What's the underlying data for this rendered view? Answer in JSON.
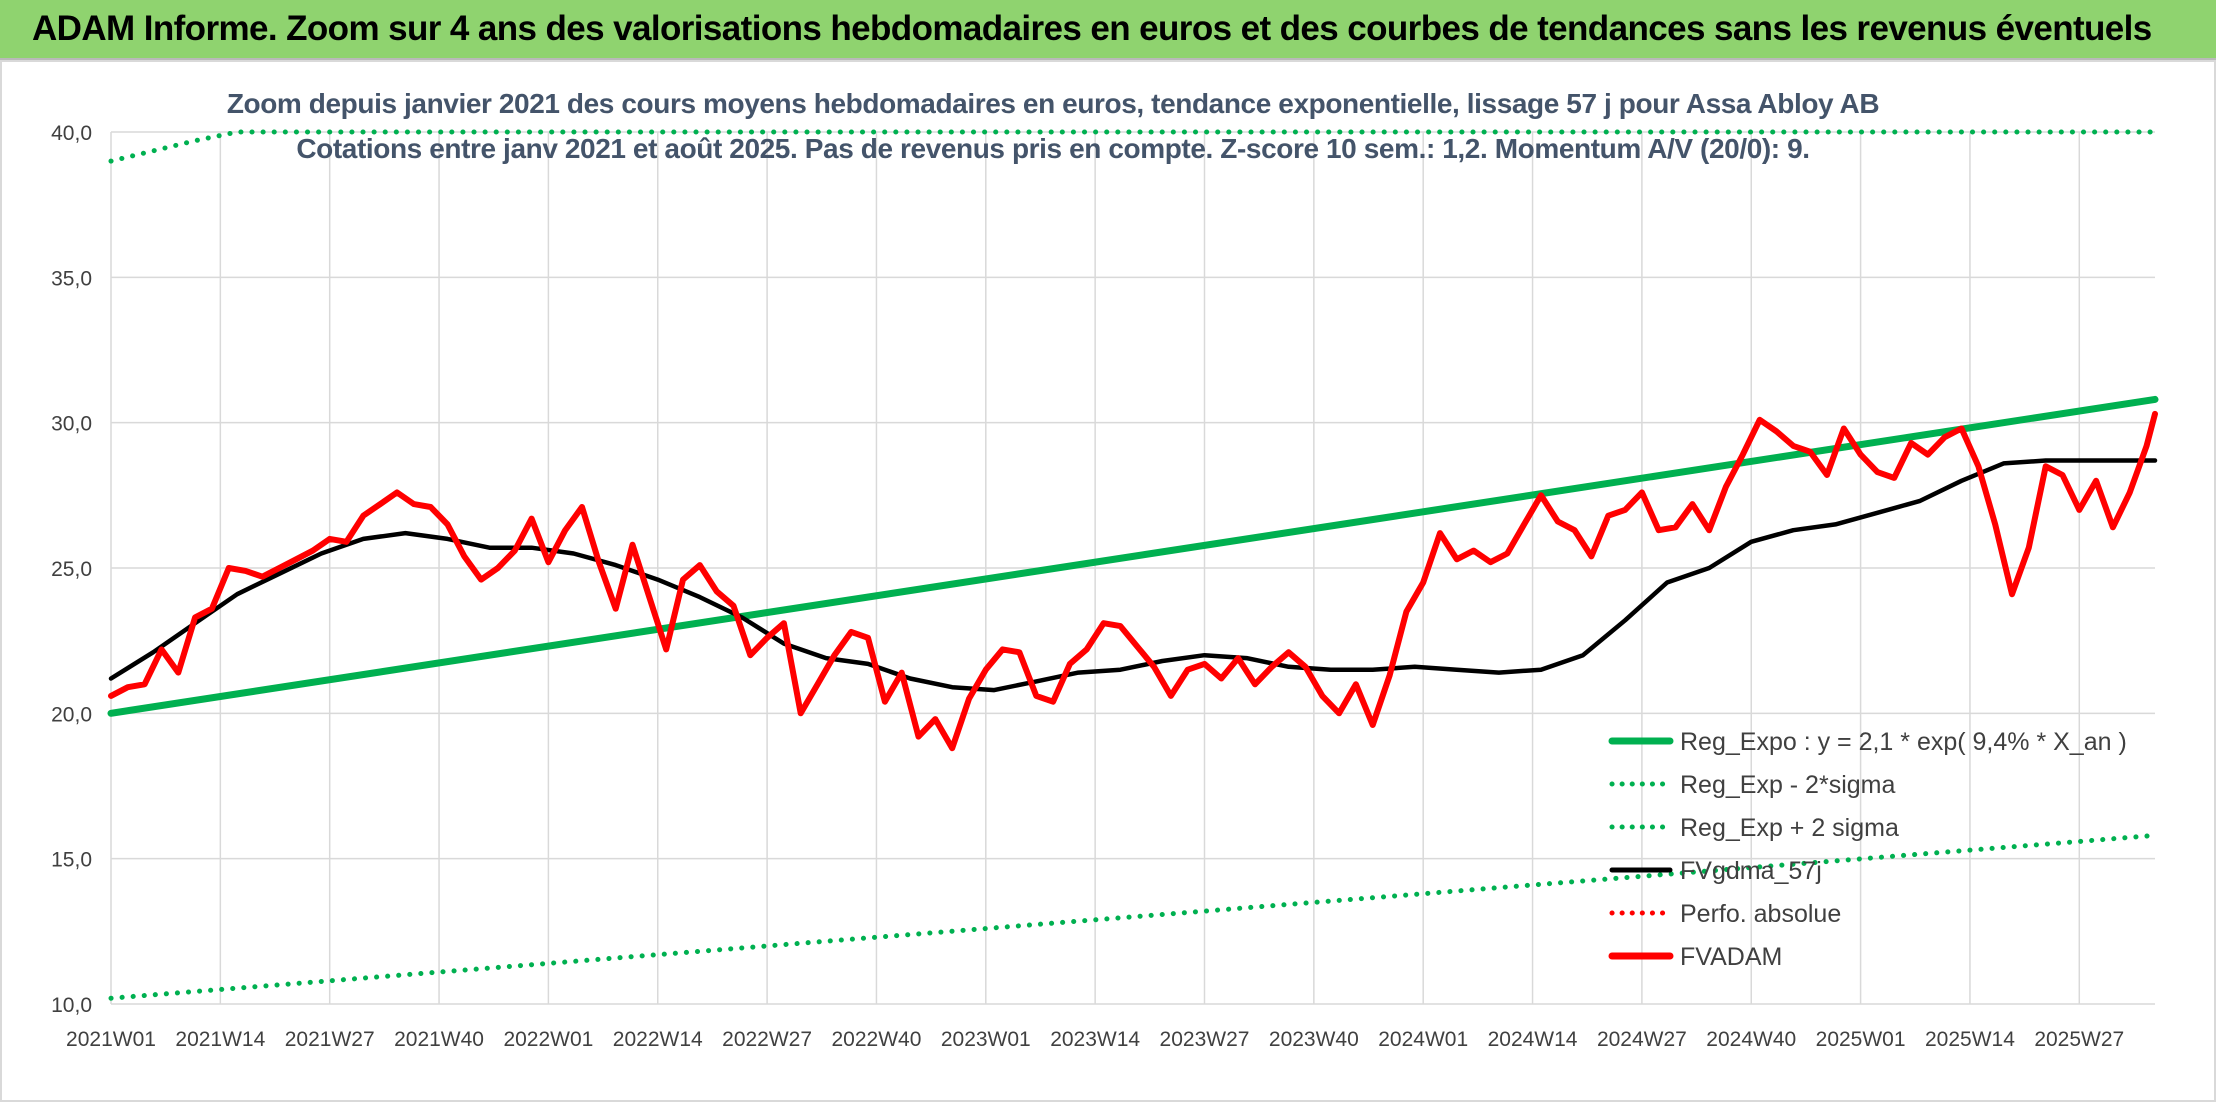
{
  "banner": {
    "title": "ADAM Informe. Zoom sur 4 ans des valorisations hebdomadaires en euros et des courbes de tendances sans les revenus éventuels"
  },
  "chart_data": {
    "type": "line",
    "title": "Zoom depuis janvier 2021 des cours moyens hebdomadaires en euros, tendance exponentielle, lissage 57 j pour Assa Abloy AB",
    "subtitle": "Cotations entre janv 2021 et août 2025. Pas de revenus pris en compte. Z-score 10 sem.: 1,2. Momentum A/V (20/0): 9.",
    "ylim": [
      10,
      40
    ],
    "yticks": [
      "10,0",
      "15,0",
      "20,0",
      "25,0",
      "30,0",
      "35,0",
      "40,0"
    ],
    "x_tick_labels": [
      "2021W01",
      "2021W14",
      "2021W27",
      "2021W40",
      "2022W01",
      "2022W14",
      "2022W27",
      "2022W40",
      "2023W01",
      "2023W14",
      "2023W27",
      "2023W40",
      "2024W01",
      "2024W14",
      "2024W27",
      "2024W40",
      "2025W01",
      "2025W14",
      "2025W27"
    ],
    "n_weeks": 244,
    "legend_position": "bottom-right",
    "grid": true,
    "series": [
      {
        "name": "Reg_Expo : y = 2,1 * exp( 9,4% *  X_an )",
        "color": "#00b050",
        "style": "solid",
        "x": [
          0,
          243
        ],
        "y": [
          20.0,
          30.8
        ]
      },
      {
        "name": "Reg_Exp - 2*sigma",
        "color": "#00b050",
        "style": "dotted",
        "x": [
          0,
          243
        ],
        "y": [
          10.2,
          15.8
        ]
      },
      {
        "name": "Reg_Exp + 2 sigma",
        "color": "#00b050",
        "style": "dotted",
        "x": [
          0,
          10,
          15,
          30,
          35,
          40,
          243
        ],
        "y": [
          39.0,
          39.7,
          40.0,
          40.0,
          40.0,
          40.0,
          40.0
        ]
      },
      {
        "name": "FVgdma_57j",
        "color": "#000000",
        "style": "solid",
        "x": [
          0,
          5,
          10,
          15,
          20,
          25,
          30,
          35,
          40,
          45,
          50,
          55,
          60,
          65,
          70,
          75,
          80,
          85,
          90,
          95,
          100,
          105,
          110,
          115,
          120,
          125,
          130,
          135,
          140,
          145,
          150,
          155,
          160,
          165,
          170,
          175,
          180,
          185,
          190,
          195,
          200,
          205,
          210,
          215,
          220,
          225,
          230,
          235,
          240,
          243
        ],
        "y": [
          21.2,
          22.1,
          23.1,
          24.1,
          24.8,
          25.5,
          26.0,
          26.2,
          26.0,
          25.7,
          25.7,
          25.5,
          25.1,
          24.6,
          24.0,
          23.3,
          22.4,
          21.9,
          21.7,
          21.2,
          20.9,
          20.8,
          21.1,
          21.4,
          21.5,
          21.8,
          22.0,
          21.9,
          21.6,
          21.5,
          21.5,
          21.6,
          21.5,
          21.4,
          21.5,
          22.0,
          23.2,
          24.5,
          25.0,
          25.9,
          26.3,
          26.5,
          26.9,
          27.3,
          28.0,
          28.6,
          28.7,
          28.7,
          28.7,
          28.7
        ]
      },
      {
        "name": "Perfo. absolue",
        "color": "#ff0000",
        "style": "dotted",
        "x": [],
        "y": []
      },
      {
        "name": "FVADAM",
        "color": "#ff0000",
        "style": "solid",
        "x": [
          0,
          2,
          4,
          6,
          8,
          10,
          12,
          14,
          16,
          18,
          20,
          22,
          24,
          26,
          28,
          30,
          32,
          34,
          36,
          38,
          40,
          42,
          44,
          46,
          48,
          50,
          52,
          54,
          56,
          58,
          60,
          62,
          64,
          66,
          68,
          70,
          72,
          74,
          76,
          78,
          80,
          82,
          84,
          86,
          88,
          90,
          92,
          94,
          96,
          98,
          100,
          102,
          104,
          106,
          108,
          110,
          112,
          114,
          116,
          118,
          120,
          122,
          124,
          126,
          128,
          130,
          132,
          134,
          136,
          138,
          140,
          142,
          144,
          146,
          148,
          150,
          152,
          154,
          156,
          158,
          160,
          162,
          164,
          166,
          168,
          170,
          172,
          174,
          176,
          178,
          180,
          182,
          184,
          186,
          188,
          190,
          192,
          194,
          196,
          198,
          200,
          202,
          204,
          206,
          208,
          210,
          212,
          214,
          216,
          218,
          220,
          222,
          224,
          226,
          228,
          230,
          232,
          234,
          236,
          238,
          240,
          242,
          243
        ],
        "y": [
          20.6,
          20.9,
          21.0,
          22.2,
          21.4,
          23.3,
          23.6,
          25.0,
          24.9,
          24.7,
          25.0,
          25.3,
          25.6,
          26.0,
          25.9,
          26.8,
          27.2,
          27.6,
          27.2,
          27.1,
          26.5,
          25.4,
          24.6,
          25.0,
          25.6,
          26.7,
          25.2,
          26.3,
          27.1,
          25.2,
          23.6,
          25.8,
          24.0,
          22.2,
          24.6,
          25.1,
          24.2,
          23.7,
          22.0,
          22.6,
          23.1,
          20.0,
          21.0,
          22.0,
          22.8,
          22.6,
          20.4,
          21.4,
          19.2,
          19.8,
          18.8,
          20.5,
          21.5,
          22.2,
          22.1,
          20.6,
          20.4,
          21.7,
          22.2,
          23.1,
          23.0,
          22.3,
          21.6,
          20.6,
          21.5,
          21.7,
          21.2,
          21.9,
          21.0,
          21.6,
          22.1,
          21.6,
          20.6,
          20.0,
          21.0,
          19.6,
          21.3,
          23.5,
          24.5,
          26.2,
          25.3,
          25.6,
          25.2,
          25.5,
          26.5,
          27.5,
          26.6,
          26.3,
          25.4,
          26.8,
          27.0,
          27.6,
          26.3,
          26.4,
          27.2,
          26.3,
          27.8,
          28.9,
          30.1,
          29.7,
          29.2,
          29.0,
          28.2,
          29.8,
          28.9,
          28.3,
          28.1,
          29.3,
          28.9,
          29.5,
          29.8,
          28.5,
          26.5,
          24.1,
          25.7,
          28.5,
          28.2,
          27.0,
          28.0,
          26.4,
          27.6,
          29.2,
          30.3
        ]
      }
    ]
  }
}
